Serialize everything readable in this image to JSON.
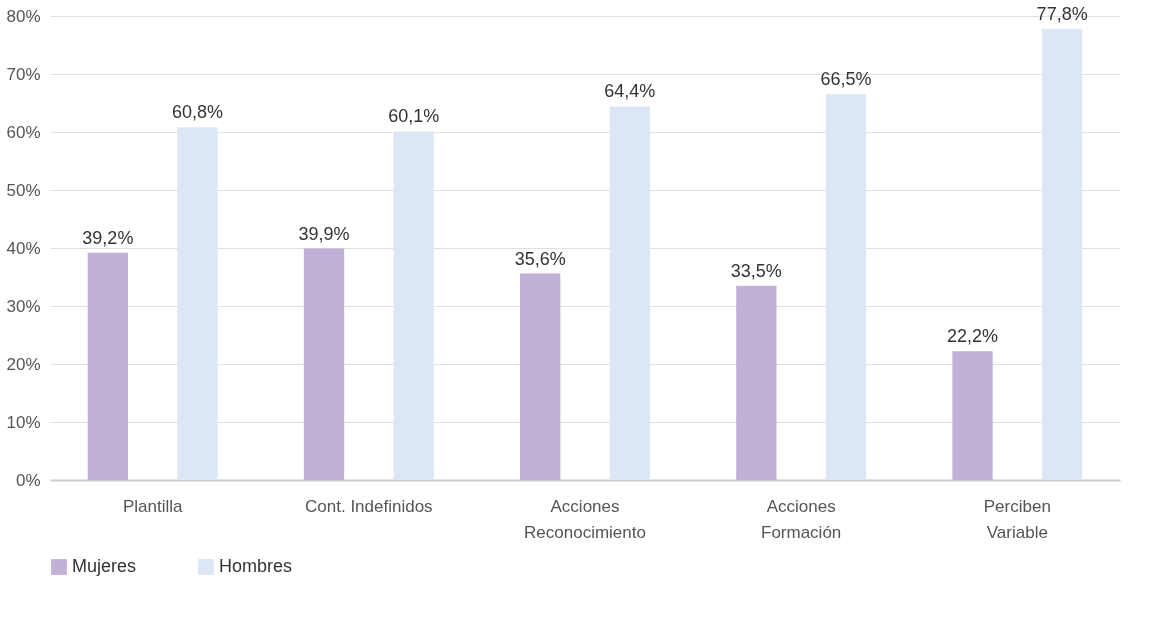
{
  "chart_data": {
    "type": "bar",
    "categories": [
      "Plantilla",
      "Cont. Indefinidos",
      "Acciones\nReconocimiento",
      "Acciones\nFormación",
      "Perciben\nVariable"
    ],
    "series": [
      {
        "name": "Mujeres",
        "color": "#c2b1d6",
        "values": [
          39.2,
          39.9,
          35.6,
          33.5,
          22.2
        ],
        "value_labels": [
          "39,2%",
          "39,9%",
          "35,6%",
          "33,5%",
          "22,2%"
        ]
      },
      {
        "name": "Hombres",
        "color": "#dce6f4",
        "values": [
          60.8,
          60.1,
          64.4,
          66.5,
          77.8
        ],
        "value_labels": [
          "60,8%",
          "60,1%",
          "64,4%",
          "66,5%",
          "77,8%"
        ]
      }
    ],
    "ylim": [
      0,
      80
    ],
    "yticks": [
      {
        "value": 0,
        "label": "0%"
      },
      {
        "value": 10,
        "label": "10%"
      },
      {
        "value": 20,
        "label": "20%"
      },
      {
        "value": 30,
        "label": "30%"
      },
      {
        "value": 40,
        "label": "40%"
      },
      {
        "value": 50,
        "label": "50%"
      },
      {
        "value": 60,
        "label": "60%"
      },
      {
        "value": 70,
        "label": "70%"
      },
      {
        "value": 80,
        "label": "80%"
      }
    ],
    "grid": "y",
    "legend": "bottom"
  }
}
